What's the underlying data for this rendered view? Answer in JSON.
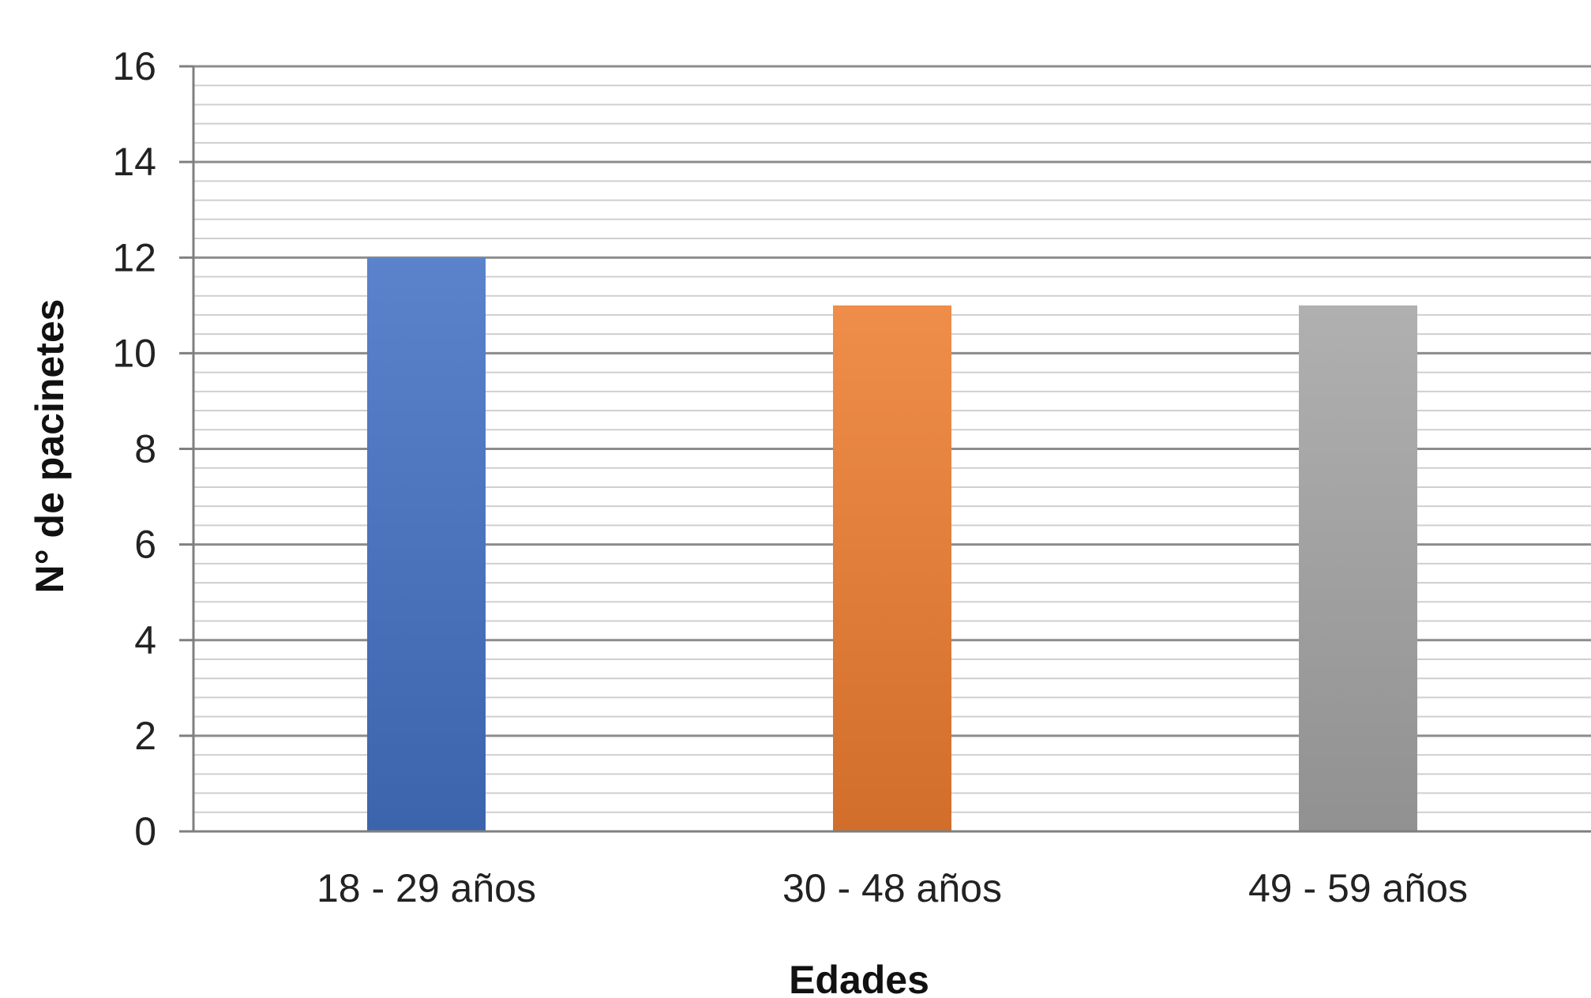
{
  "chart_data": {
    "type": "bar",
    "title": "",
    "xlabel": "Edades",
    "ylabel": "N° de pacinetes",
    "categories": [
      "18 - 29 años",
      "30 - 48 años",
      "49 - 59 años"
    ],
    "values": [
      12,
      11,
      11
    ],
    "ylim": [
      0,
      16
    ],
    "y_major_ticks": [
      0,
      2,
      4,
      6,
      8,
      10,
      12,
      14,
      16
    ],
    "y_minor_step": 0.4,
    "grid": true,
    "legend": "none",
    "colors": [
      "#4472C4",
      "#ED7D31",
      "#A5A5A5"
    ]
  }
}
